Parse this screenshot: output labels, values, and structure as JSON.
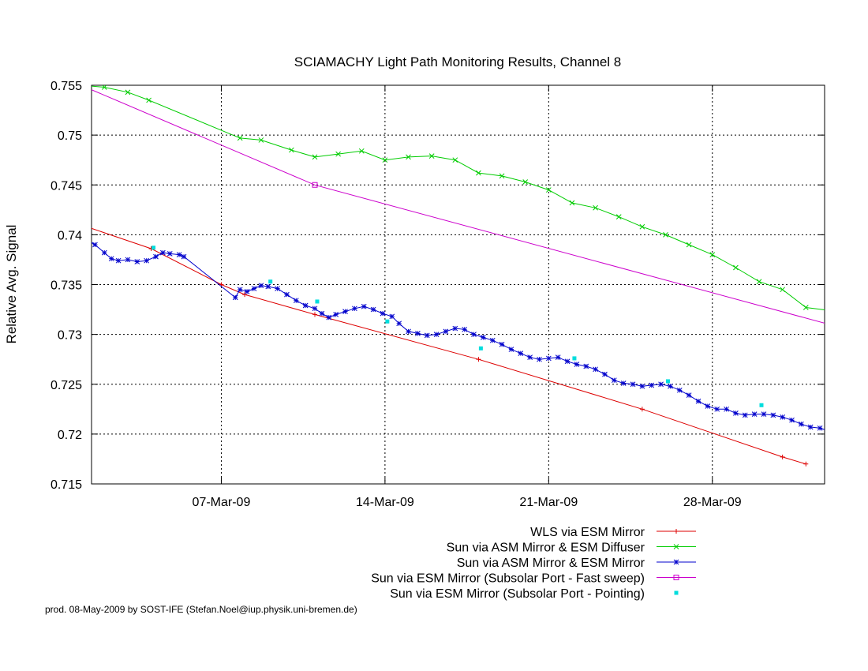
{
  "chart_data": {
    "type": "line",
    "title": "SCIAMACHY Light Path Monitoring Results, Channel 8",
    "xlabel": "",
    "ylabel": "Relative Avg. Signal",
    "xlim": [
      "2009-03-01",
      "2009-04-01"
    ],
    "ylim": [
      0.715,
      0.755
    ],
    "x_ticks": [
      {
        "date": "2009-03-07",
        "label": "07-Mar-09"
      },
      {
        "date": "2009-03-14",
        "label": "14-Mar-09"
      },
      {
        "date": "2009-03-21",
        "label": "21-Mar-09"
      },
      {
        "date": "2009-03-28",
        "label": "28-Mar-09"
      }
    ],
    "y_ticks": [
      "0.715",
      "0.72",
      "0.725",
      "0.73",
      "0.735",
      "0.74",
      "0.745",
      "0.75",
      "0.755"
    ],
    "grid": true,
    "legend_position": "bottom-right",
    "footer": "prod. 08-May-2009 by SOST-IFE (Stefan.Noel@iup.physik.uni-bremen.de)",
    "series": [
      {
        "name": "WLS via ESM Mirror",
        "color": "#dd0000",
        "marker": "plus",
        "line": true,
        "points": [
          [
            "2009-03-01",
            0.741
          ],
          [
            "2009-03-04",
            0.7386
          ],
          [
            "2009-03-07",
            0.735
          ],
          [
            "2009-03-08",
            0.734
          ],
          [
            "2009-03-11",
            0.732
          ],
          [
            "2009-03-18",
            0.7275
          ],
          [
            "2009-03-25",
            0.7225
          ],
          [
            "2009-03-31",
            0.7177
          ],
          [
            "2009-04-01",
            0.717
          ]
        ]
      },
      {
        "name": "Sun via ASM Mirror & ESM Diffuser",
        "color": "#00cc00",
        "marker": "x",
        "line": true,
        "points": [
          [
            "2009-03-01",
            0.755
          ],
          [
            "2009-03-02",
            0.7548
          ],
          [
            "2009-03-03",
            0.7543
          ],
          [
            "2009-03-03.9",
            0.7535
          ],
          [
            "2009-03-07.8",
            0.7497
          ],
          [
            "2009-03-08.7",
            0.7495
          ],
          [
            "2009-03-10",
            0.7485
          ],
          [
            "2009-03-11",
            0.7478
          ],
          [
            "2009-03-12",
            0.7481
          ],
          [
            "2009-03-13",
            0.7484
          ],
          [
            "2009-03-14",
            0.7475
          ],
          [
            "2009-03-15",
            0.7478
          ],
          [
            "2009-03-16",
            0.7479
          ],
          [
            "2009-03-17",
            0.7475
          ],
          [
            "2009-03-18",
            0.7462
          ],
          [
            "2009-03-19",
            0.7459
          ],
          [
            "2009-03-20",
            0.7453
          ],
          [
            "2009-03-21",
            0.7445
          ],
          [
            "2009-03-22",
            0.7432
          ],
          [
            "2009-03-23",
            0.7427
          ],
          [
            "2009-03-24",
            0.7418
          ],
          [
            "2009-03-25",
            0.7408
          ],
          [
            "2009-03-26",
            0.74
          ],
          [
            "2009-03-27",
            0.739
          ],
          [
            "2009-03-28",
            0.738
          ],
          [
            "2009-03-29",
            0.7367
          ],
          [
            "2009-03-30",
            0.7353
          ],
          [
            "2009-03-31",
            0.7345
          ],
          [
            "2009-04-01",
            0.7327
          ],
          [
            "2009-04-02",
            0.7324
          ]
        ]
      },
      {
        "name": "Sun via ASM Mirror & ESM Mirror",
        "color": "#0000cc",
        "marker": "star",
        "line": true,
        "points": [
          [
            "2009-03-01.0",
            0.7392
          ],
          [
            "2009-03-01.3",
            0.7394
          ],
          [
            "2009-03-01.6",
            0.739
          ],
          [
            "2009-03-02.0",
            0.7382
          ],
          [
            "2009-03-02.3",
            0.7376
          ],
          [
            "2009-03-02.6",
            0.7374
          ],
          [
            "2009-03-03.0",
            0.7375
          ],
          [
            "2009-03-03.4",
            0.7373
          ],
          [
            "2009-03-03.8",
            0.7374
          ],
          [
            "2009-03-04.2",
            0.7378
          ],
          [
            "2009-03-04.5",
            0.7382
          ],
          [
            "2009-03-04.8",
            0.7381
          ],
          [
            "2009-03-05.2",
            0.738
          ],
          [
            "2009-03-05.4",
            0.7378
          ],
          [
            "2009-03-07.6",
            0.7337
          ],
          [
            "2009-03-07.8",
            0.7345
          ],
          [
            "2009-03-08.1",
            0.7343
          ],
          [
            "2009-03-08.4",
            0.7346
          ],
          [
            "2009-03-08.7",
            0.7349
          ],
          [
            "2009-03-09.0",
            0.7348
          ],
          [
            "2009-03-09.4",
            0.7346
          ],
          [
            "2009-03-09.8",
            0.734
          ],
          [
            "2009-03-10.2",
            0.7334
          ],
          [
            "2009-03-10.6",
            0.7329
          ],
          [
            "2009-03-11.0",
            0.7326
          ],
          [
            "2009-03-11.3",
            0.7321
          ],
          [
            "2009-03-11.6",
            0.7317
          ],
          [
            "2009-03-11.9",
            0.732
          ],
          [
            "2009-03-12.3",
            0.7323
          ],
          [
            "2009-03-12.7",
            0.7326
          ],
          [
            "2009-03-13.1",
            0.7328
          ],
          [
            "2009-03-13.5",
            0.7325
          ],
          [
            "2009-03-13.9",
            0.7321
          ],
          [
            "2009-03-14.3",
            0.7318
          ],
          [
            "2009-03-14.6",
            0.7311
          ],
          [
            "2009-03-15.0",
            0.7303
          ],
          [
            "2009-03-15.4",
            0.7301
          ],
          [
            "2009-03-15.8",
            0.7299
          ],
          [
            "2009-03-16.2",
            0.73
          ],
          [
            "2009-03-16.6",
            0.7303
          ],
          [
            "2009-03-17.0",
            0.7306
          ],
          [
            "2009-03-17.4",
            0.7305
          ],
          [
            "2009-03-17.8",
            0.73
          ],
          [
            "2009-03-18.2",
            0.7297
          ],
          [
            "2009-03-18.6",
            0.7294
          ],
          [
            "2009-03-19.0",
            0.729
          ],
          [
            "2009-03-19.4",
            0.7285
          ],
          [
            "2009-03-19.8",
            0.7281
          ],
          [
            "2009-03-20.2",
            0.7277
          ],
          [
            "2009-03-20.6",
            0.7275
          ],
          [
            "2009-03-21.0",
            0.7276
          ],
          [
            "2009-03-21.4",
            0.7277
          ],
          [
            "2009-03-21.8",
            0.7273
          ],
          [
            "2009-03-22.2",
            0.727
          ],
          [
            "2009-03-22.6",
            0.7268
          ],
          [
            "2009-03-23.0",
            0.7265
          ],
          [
            "2009-03-23.4",
            0.726
          ],
          [
            "2009-03-23.8",
            0.7254
          ],
          [
            "2009-03-24.2",
            0.7251
          ],
          [
            "2009-03-24.6",
            0.725
          ],
          [
            "2009-03-25.0",
            0.7248
          ],
          [
            "2009-03-25.4",
            0.7249
          ],
          [
            "2009-03-25.8",
            0.725
          ],
          [
            "2009-03-26.2",
            0.7248
          ],
          [
            "2009-03-26.6",
            0.7244
          ],
          [
            "2009-03-27.0",
            0.7239
          ],
          [
            "2009-03-27.4",
            0.7233
          ],
          [
            "2009-03-27.8",
            0.7228
          ],
          [
            "2009-03-28.2",
            0.7225
          ],
          [
            "2009-03-28.6",
            0.7225
          ],
          [
            "2009-03-29.0",
            0.7221
          ],
          [
            "2009-03-29.4",
            0.7219
          ],
          [
            "2009-03-29.8",
            0.722
          ],
          [
            "2009-03-30.2",
            0.722
          ],
          [
            "2009-03-30.6",
            0.7219
          ],
          [
            "2009-03-31.0",
            0.7217
          ],
          [
            "2009-03-31.4",
            0.7214
          ],
          [
            "2009-03-31.8",
            0.721
          ],
          [
            "2009-04-01.2",
            0.7207
          ],
          [
            "2009-04-01.6",
            0.7206
          ],
          [
            "2009-04-02.0",
            0.7203
          ]
        ]
      },
      {
        "name": "Sun via ESM Mirror (Subsolar Port - Fast sweep)",
        "color": "#cc00cc",
        "marker": "square",
        "line": true,
        "points": [
          [
            "2009-03-01",
            0.755
          ],
          [
            "2009-03-11",
            0.745
          ],
          [
            "2009-04-02",
            0.731
          ]
        ],
        "markers_at": [
          1
        ]
      },
      {
        "name": "Sun via ESM Mirror (Subsolar Port - Pointing)",
        "color": "#00dddd",
        "marker": "dot",
        "line": false,
        "points": [
          [
            "2009-03-04.1",
            0.7387
          ],
          [
            "2009-03-09.1",
            0.7353
          ],
          [
            "2009-03-11.1",
            0.7333
          ],
          [
            "2009-03-14.1",
            0.7313
          ],
          [
            "2009-03-18.1",
            0.7286
          ],
          [
            "2009-03-22.1",
            0.7276
          ],
          [
            "2009-03-26.1",
            0.7253
          ],
          [
            "2009-03-30.1",
            0.7229
          ]
        ]
      }
    ]
  }
}
